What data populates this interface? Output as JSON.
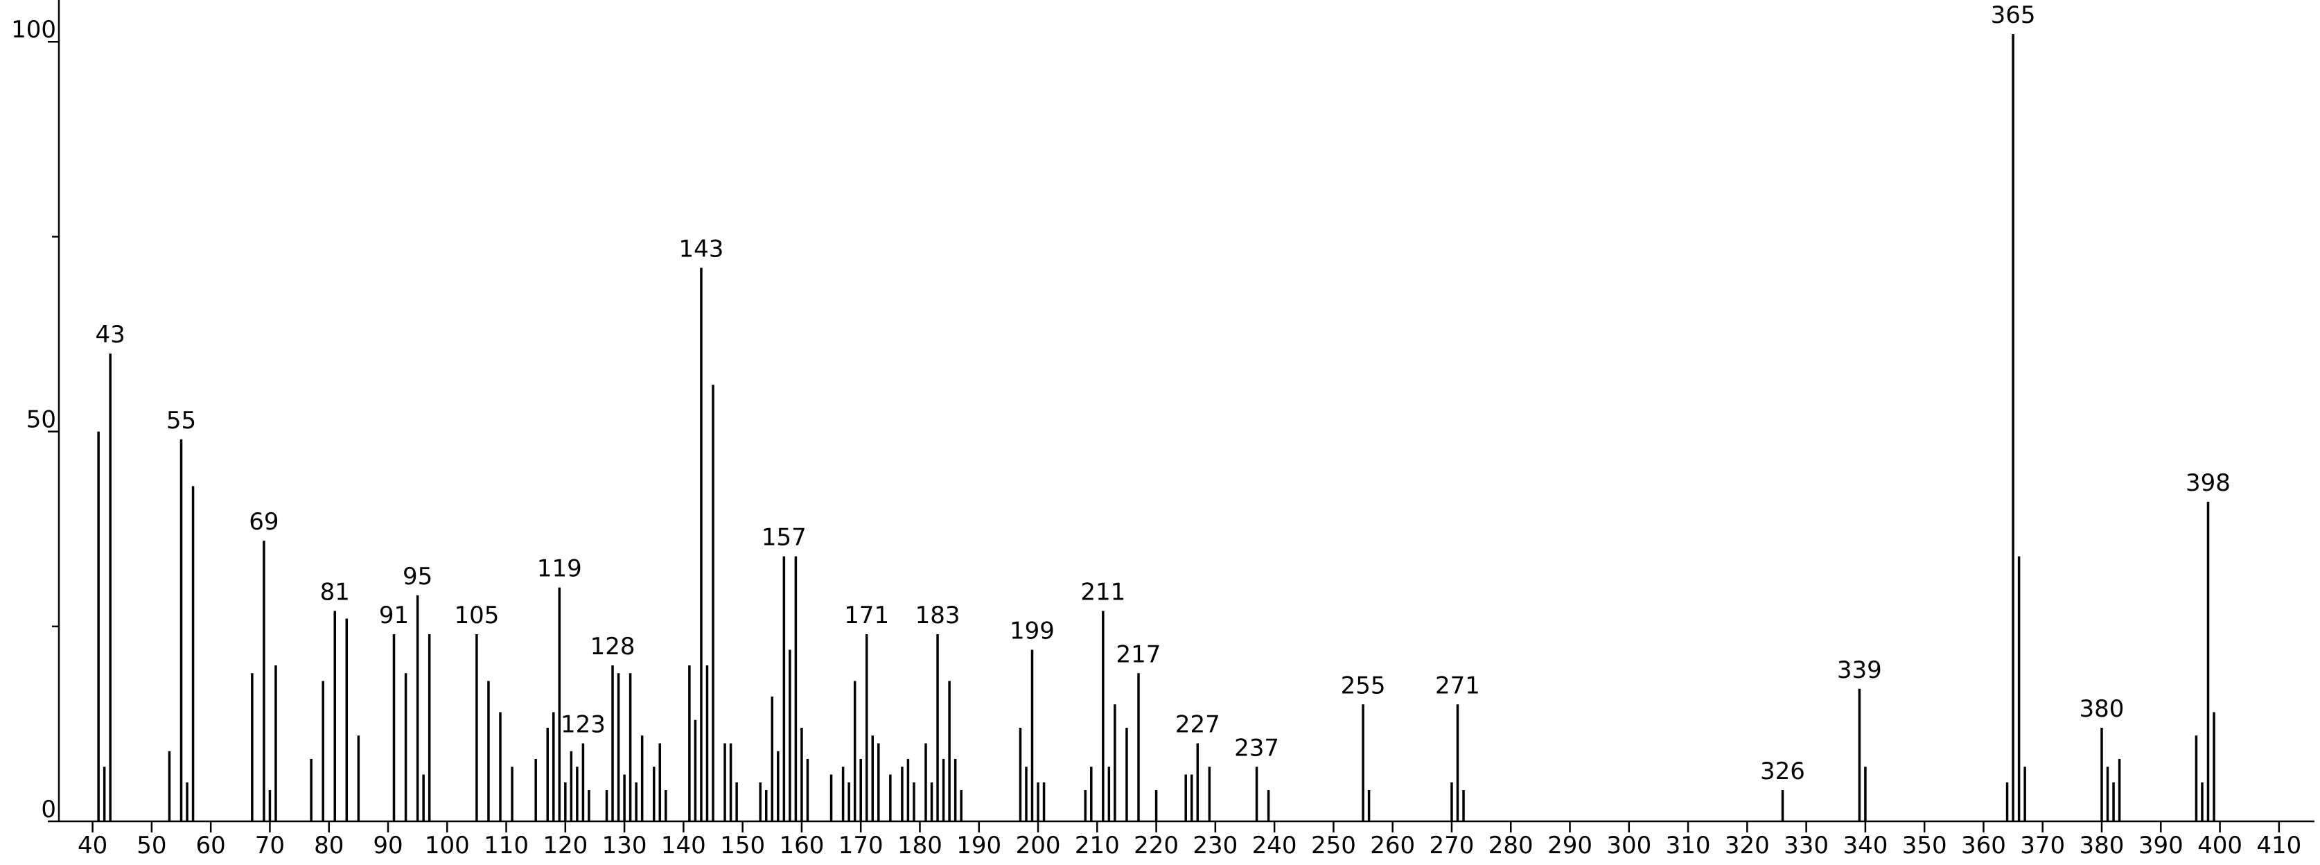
{
  "chart_data": {
    "type": "stem",
    "color": "#000000",
    "x": [
      41,
      42,
      43,
      53,
      55,
      56,
      57,
      67,
      69,
      70,
      71,
      77,
      79,
      81,
      83,
      85,
      91,
      93,
      95,
      96,
      97,
      105,
      107,
      109,
      111,
      115,
      117,
      118,
      119,
      120,
      121,
      122,
      123,
      124,
      127,
      128,
      129,
      130,
      131,
      132,
      133,
      135,
      136,
      137,
      141,
      142,
      143,
      144,
      145,
      147,
      148,
      149,
      153,
      154,
      155,
      156,
      157,
      158,
      159,
      160,
      161,
      165,
      167,
      168,
      169,
      170,
      171,
      172,
      173,
      175,
      177,
      178,
      179,
      181,
      182,
      183,
      184,
      185,
      186,
      187,
      197,
      198,
      199,
      200,
      201,
      208,
      209,
      211,
      212,
      213,
      215,
      217,
      220,
      225,
      226,
      227,
      229,
      237,
      239,
      255,
      256,
      270,
      271,
      272,
      326,
      339,
      340,
      364,
      365,
      366,
      367,
      380,
      381,
      382,
      383,
      396,
      397,
      398,
      399
    ],
    "values": [
      50,
      7,
      60,
      9,
      49,
      5,
      43,
      19,
      36,
      4,
      20,
      8,
      18,
      27,
      26,
      11,
      24,
      19,
      29,
      6,
      24,
      24,
      18,
      14,
      7,
      8,
      12,
      14,
      30,
      5,
      9,
      7,
      10,
      4,
      4,
      20,
      19,
      6,
      19,
      5,
      11,
      7,
      10,
      4,
      20,
      13,
      71,
      20,
      56,
      10,
      10,
      5,
      5,
      4,
      16,
      9,
      34,
      22,
      34,
      12,
      8,
      6,
      7,
      5,
      18,
      8,
      24,
      11,
      10,
      6,
      7,
      8,
      5,
      10,
      5,
      24,
      8,
      18,
      8,
      4,
      12,
      7,
      22,
      5,
      5,
      4,
      7,
      27,
      7,
      15,
      12,
      19,
      4,
      6,
      6,
      10,
      7,
      7,
      4,
      15,
      4,
      5,
      15,
      4,
      4,
      17,
      7,
      5,
      101,
      34,
      7,
      12,
      7,
      5,
      8,
      11,
      5,
      41,
      14
    ],
    "annotations": [
      43,
      55,
      69,
      81,
      91,
      95,
      105,
      119,
      123,
      128,
      143,
      157,
      171,
      183,
      199,
      211,
      217,
      227,
      237,
      255,
      271,
      326,
      339,
      365,
      380,
      398
    ],
    "xlim": [
      34.3,
      416
    ],
    "ylim": [
      0,
      105
    ],
    "xticks": [
      40,
      50,
      60,
      70,
      80,
      90,
      100,
      110,
      120,
      130,
      140,
      150,
      160,
      170,
      180,
      190,
      200,
      210,
      220,
      230,
      240,
      250,
      260,
      270,
      280,
      290,
      300,
      310,
      320,
      330,
      340,
      350,
      360,
      370,
      380,
      390,
      400,
      410
    ],
    "yticks": [
      0,
      50,
      100
    ],
    "yminorticks": [
      25,
      75
    ]
  }
}
